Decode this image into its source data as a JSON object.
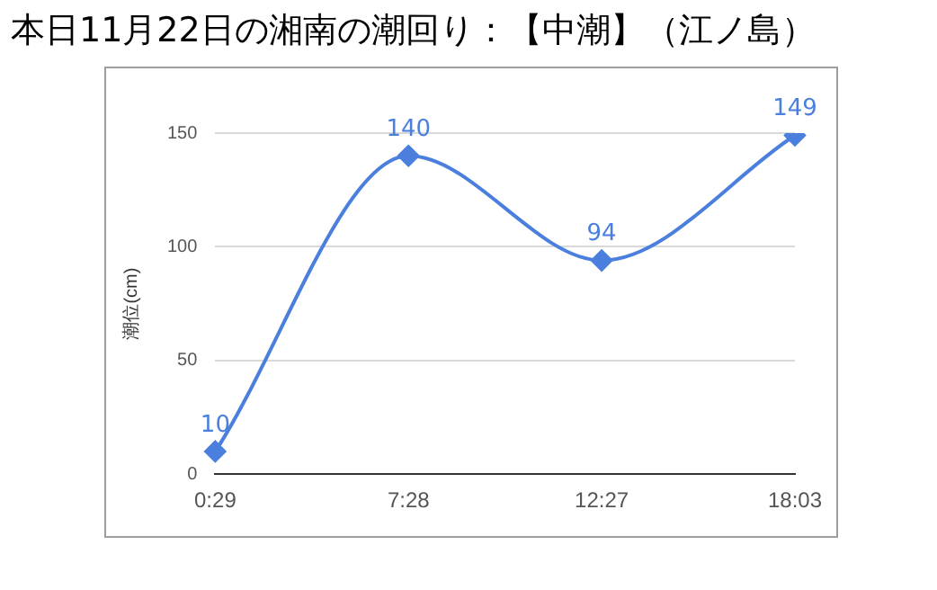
{
  "chart_data": {
    "type": "line",
    "title": "本日11月22日の湘南の潮回り：【中潮】（江ノ島）",
    "ylabel": "潮位(cm)",
    "categories": [
      "0:29",
      "7:28",
      "12:27",
      "18:03"
    ],
    "series": [
      {
        "color": "#4a7fde",
        "values": [
          10,
          140,
          94,
          149
        ]
      }
    ],
    "ylim": [
      0,
      150
    ],
    "yticks": [
      0,
      50,
      100,
      150
    ],
    "grid": "y",
    "legend": false,
    "marker": "diamond",
    "line_style": "solid",
    "data_labels": true
  }
}
